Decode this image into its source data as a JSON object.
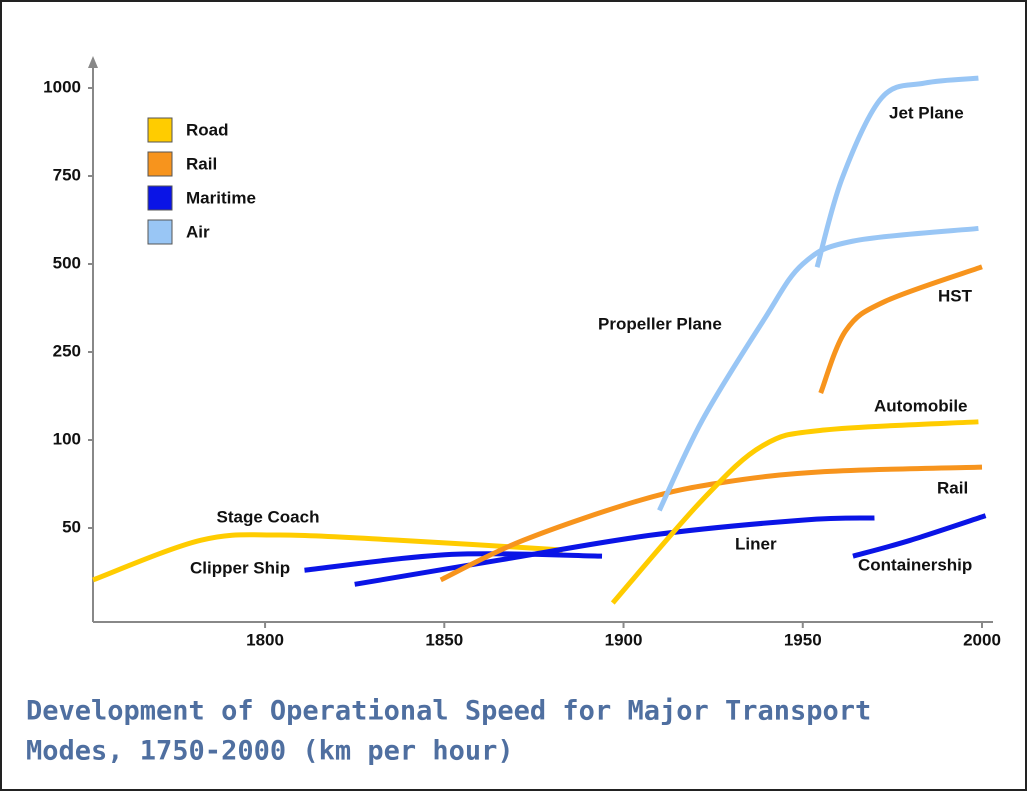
{
  "chart_data": {
    "type": "line",
    "title": [
      "Development of Operational Speed for Major Transport",
      "Modes, 1750-2000 (km per hour)"
    ],
    "xlim": [
      1752,
      2002
    ],
    "xticks": [
      1800,
      1850,
      1900,
      1950,
      2000
    ],
    "ylim": [
      0,
      1050
    ],
    "yticks": [
      50,
      100,
      250,
      500,
      750,
      1000
    ],
    "legend": [
      {
        "name": "Road",
        "color": "#ffcc00"
      },
      {
        "name": "Rail",
        "color": "#f7941d"
      },
      {
        "name": "Maritime",
        "color": "#0a14e6"
      },
      {
        "name": "Air",
        "color": "#99c6f5"
      }
    ],
    "series": [
      {
        "name": "Stage Coach",
        "mode": 0,
        "x": [
          1752,
          1782,
          1804,
          1838,
          1883
        ],
        "values": [
          20.5,
          43,
          46,
          43,
          37.5
        ]
      },
      {
        "name": "Clipper Ship",
        "mode": 2,
        "x": [
          1811,
          1852,
          1894
        ],
        "values": [
          26,
          35,
          34
        ]
      },
      {
        "name": "Liner",
        "mode": 2,
        "x": [
          1825,
          1866,
          1908,
          1950,
          1970
        ],
        "values": [
          18,
          32,
          46,
          54.5,
          55.7
        ]
      },
      {
        "name": "Containership",
        "mode": 2,
        "x": [
          1964,
          1980,
          2001
        ],
        "values": [
          34,
          43,
          57
        ]
      },
      {
        "name": "Rail",
        "mode": 1,
        "x": [
          1849,
          1872,
          1905,
          1928,
          1956,
          2000
        ],
        "values": [
          20.5,
          43,
          66,
          76,
          82,
          84.6
        ]
      },
      {
        "name": "HST",
        "mode": 1,
        "x": [
          1955,
          1962,
          1973,
          2000
        ],
        "values": [
          180,
          311,
          394,
          492
        ]
      },
      {
        "name": "Automobile",
        "mode": 0,
        "x": [
          1897,
          1922,
          1939,
          1956,
          1999
        ],
        "values": [
          7.4,
          66,
          97,
          117,
          131
        ]
      },
      {
        "name": "Propeller Plane",
        "mode": 3,
        "x": [
          1910,
          1922,
          1939,
          1950,
          1964,
          1999
        ],
        "values": [
          60,
          134,
          339,
          500,
          565,
          601
        ]
      },
      {
        "name": "Jet Plane",
        "mode": 3,
        "x": [
          1954,
          1961,
          1972,
          1984,
          1999
        ],
        "values": [
          491,
          744,
          972,
          1014,
          1028
        ]
      }
    ]
  }
}
